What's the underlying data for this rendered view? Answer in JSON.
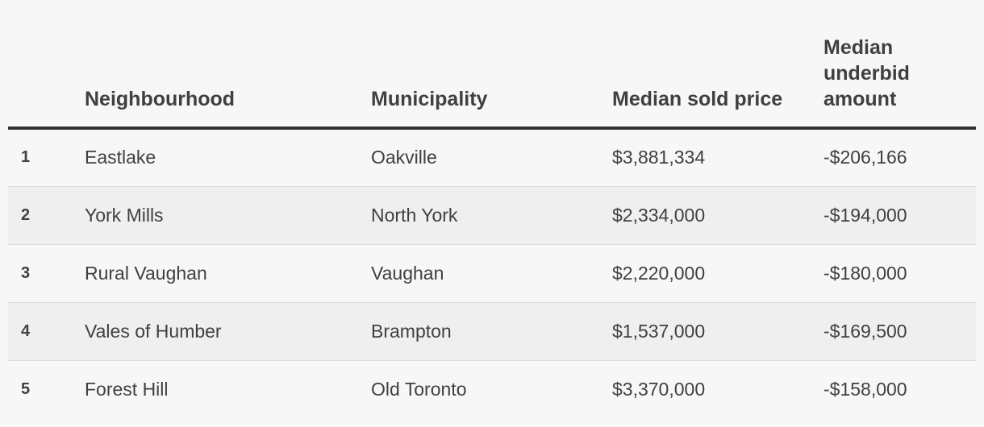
{
  "table": {
    "headers": {
      "rank": "",
      "neighbourhood": "Neighbourhood",
      "municipality": "Municipality",
      "median_sold_price": "Median sold price",
      "median_underbid_amount": "Median underbid amount"
    },
    "rows": [
      {
        "rank": "1",
        "neighbourhood": "Eastlake",
        "municipality": "Oakville",
        "median_sold_price": "$3,881,334",
        "median_underbid_amount": "-$206,166"
      },
      {
        "rank": "2",
        "neighbourhood": "York Mills",
        "municipality": "North York",
        "median_sold_price": "$2,334,000",
        "median_underbid_amount": "-$194,000"
      },
      {
        "rank": "3",
        "neighbourhood": "Rural Vaughan",
        "municipality": "Vaughan",
        "median_sold_price": "$2,220,000",
        "median_underbid_amount": "-$180,000"
      },
      {
        "rank": "4",
        "neighbourhood": "Vales of Humber",
        "municipality": "Brampton",
        "median_sold_price": "$1,537,000",
        "median_underbid_amount": "-$169,500"
      },
      {
        "rank": "5",
        "neighbourhood": "Forest Hill",
        "municipality": "Old Toronto",
        "median_sold_price": "$3,370,000",
        "median_underbid_amount": "-$158,000"
      }
    ]
  }
}
